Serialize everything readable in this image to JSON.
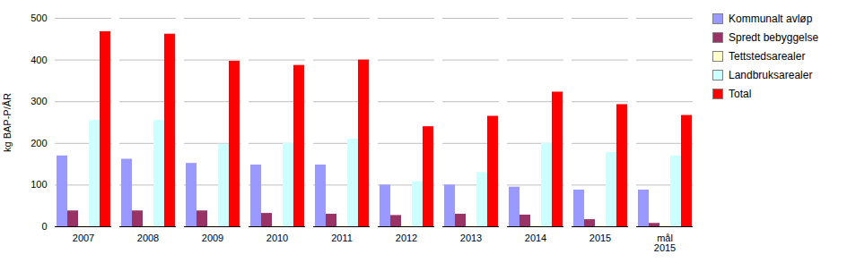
{
  "chart_data": {
    "type": "bar",
    "categories": [
      "2007",
      "2008",
      "2009",
      "2010",
      "2011",
      "2012",
      "2013",
      "2014",
      "2015",
      "mål\n2015"
    ],
    "series": [
      {
        "name": "Kommunalt avløp",
        "color": "#9999FF",
        "values": [
          170,
          162,
          152,
          148,
          148,
          100,
          100,
          95,
          88,
          88
        ]
      },
      {
        "name": "Spredt bebyggelse",
        "color": "#993366",
        "values": [
          38,
          38,
          38,
          32,
          30,
          27,
          30,
          28,
          17,
          8
        ]
      },
      {
        "name": "Tettstedsarealer",
        "color": "#FFFFCC",
        "values": [
          2,
          2,
          2,
          2,
          2,
          2,
          2,
          2,
          2,
          2
        ]
      },
      {
        "name": "Landbruksarealer",
        "color": "#CCFFFF",
        "values": [
          255,
          255,
          198,
          200,
          210,
          108,
          130,
          200,
          178,
          170
        ]
      },
      {
        "name": "Total",
        "color": "#FF0000",
        "values": [
          468,
          462,
          397,
          387,
          400,
          240,
          265,
          323,
          293,
          267
        ]
      }
    ],
    "ylabel": "kg BAP-P/ÅR",
    "ylim": [
      0,
      500
    ],
    "yticks": [
      0,
      100,
      200,
      300,
      400,
      500
    ],
    "grid": true,
    "legend": "right"
  }
}
